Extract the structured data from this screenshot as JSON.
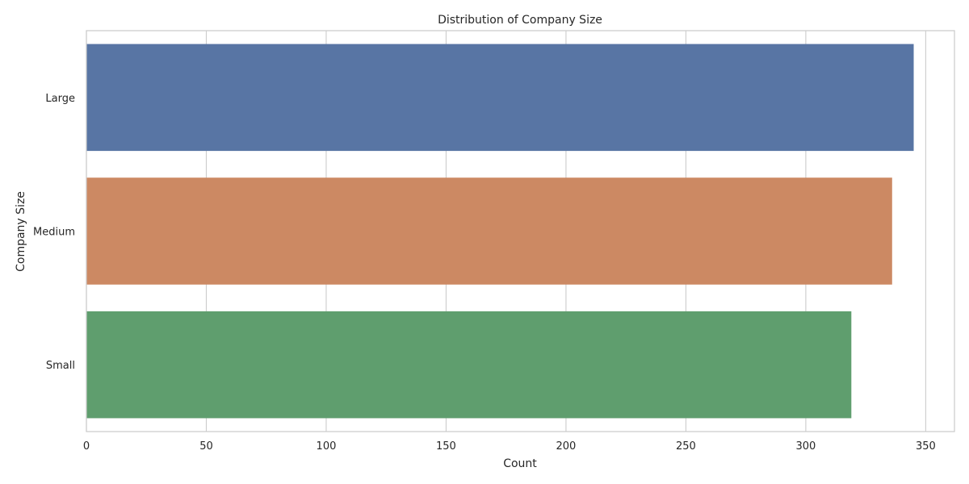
{
  "chart_data": {
    "type": "bar",
    "orientation": "horizontal",
    "title": "Distribution of Company Size",
    "xlabel": "Count",
    "ylabel": "Company Size",
    "categories": [
      "Large",
      "Medium",
      "Small"
    ],
    "values": [
      345,
      336,
      319
    ],
    "colors": [
      "#5875a4",
      "#cc8963",
      "#5f9e6e"
    ],
    "xlim": [
      0,
      362
    ],
    "xticks": [
      0,
      50,
      100,
      150,
      200,
      250,
      300,
      350
    ],
    "grid": true,
    "legend": "none"
  }
}
